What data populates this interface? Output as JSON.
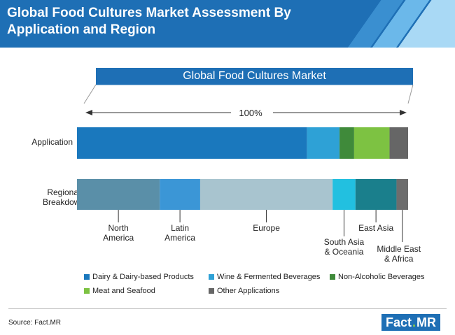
{
  "header": {
    "title": "Global Food Cultures Market Assessment By Application and Region"
  },
  "market_label": "Global Food Cultures Market",
  "span_label": "100%",
  "row_labels": {
    "application": "Application",
    "regional": "Regional\nBreakdown"
  },
  "chart_data": {
    "type": "bar",
    "stacked": true,
    "orientation": "horizontal",
    "title": "Global Food Cultures Market",
    "categories": [
      "Application",
      "Regional Breakdown"
    ],
    "application_segments": [
      {
        "name": "Dairy & Dairy-based Products",
        "value": 69.5,
        "color": "#1a78bd"
      },
      {
        "name": "Wine & Fermented Beverages",
        "value": 9.8,
        "color": "#2ea1d6"
      },
      {
        "name": "Non-Alcoholic Beverages",
        "value": 4.4,
        "color": "#3f8a3a"
      },
      {
        "name": "Meat and Seafood",
        "value": 10.7,
        "color": "#7dc242"
      },
      {
        "name": "Other Applications",
        "value": 5.6,
        "color": "#666666"
      }
    ],
    "regional_segments": [
      {
        "name": "North America",
        "value": 25.0,
        "color": "#5a8fa8"
      },
      {
        "name": "Latin America",
        "value": 12.2,
        "color": "#3b96d6"
      },
      {
        "name": "Europe",
        "value": 40.0,
        "color": "#a8c4cf"
      },
      {
        "name": "South Asia & Oceania",
        "value": 6.9,
        "color": "#22c0e0"
      },
      {
        "name": "East Asia",
        "value": 12.4,
        "color": "#1a7f8c"
      },
      {
        "name": "Middle East & Africa",
        "value": 3.5,
        "color": "#6d6d6d"
      }
    ]
  },
  "region_labels": [
    "North\nAmerica",
    "Latin\nAmerica",
    "Europe",
    "South Asia\n& Oceania",
    "East Asia",
    "Middle East\n& Africa"
  ],
  "legend": [
    {
      "label": "Dairy & Dairy-based Products",
      "color": "#1a78bd"
    },
    {
      "label": "Wine & Fermented Beverages",
      "color": "#2ea1d6"
    },
    {
      "label": "Non-Alcoholic Beverages",
      "color": "#3f8a3a"
    },
    {
      "label": "Meat and Seafood",
      "color": "#7dc242"
    },
    {
      "label": "Other Applications",
      "color": "#666666"
    }
  ],
  "footer": {
    "source": "Source: Fact.MR",
    "logo_left": "Fact",
    "logo_dot": ".",
    "logo_right": "MR"
  }
}
